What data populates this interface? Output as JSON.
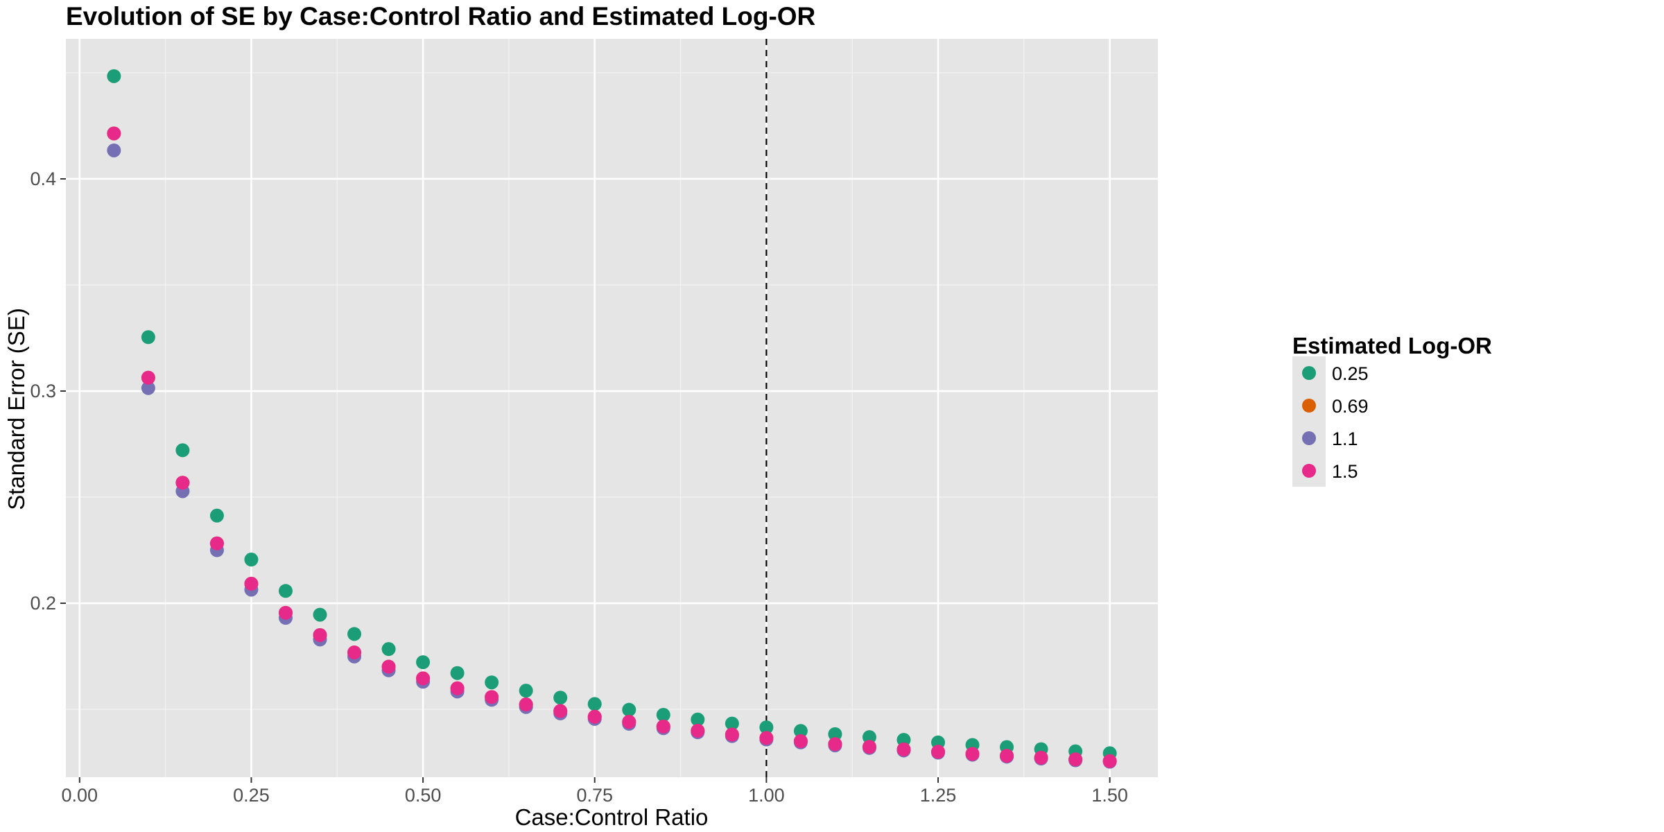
{
  "chart_data": {
    "type": "scatter",
    "title": "Evolution of SE by Case:Control Ratio and Estimated Log-OR",
    "xlabel": "Case:Control Ratio",
    "ylabel": "Standard Error (SE)",
    "xlim": [
      -0.02,
      1.57
    ],
    "ylim": [
      0.118,
      0.466
    ],
    "x_ticks": [
      0.0,
      0.25,
      0.5,
      0.75,
      1.0,
      1.25,
      1.5
    ],
    "x_tick_labels": [
      "0.00",
      "0.25",
      "0.50",
      "0.75",
      "1.00",
      "1.25",
      "1.50"
    ],
    "y_ticks": [
      0.2,
      0.3,
      0.4
    ],
    "y_tick_labels": [
      "0.2",
      "0.3",
      "0.4"
    ],
    "grid": true,
    "reference_line": {
      "axis": "x",
      "value": 1.0,
      "style": "dashed",
      "color": "#000000"
    },
    "legend": {
      "title": "Estimated Log-OR",
      "position": "right"
    },
    "x": [
      0.05,
      0.1,
      0.15,
      0.2,
      0.25,
      0.3,
      0.35,
      0.4,
      0.45,
      0.5,
      0.55,
      0.6,
      0.65,
      0.7,
      0.75,
      0.8,
      0.85,
      0.9,
      0.95,
      1.0,
      1.05,
      1.1,
      1.15,
      1.2,
      1.25,
      1.3,
      1.35,
      1.4,
      1.45,
      1.5
    ],
    "series": [
      {
        "name": "0.25",
        "color": "#1B9E77",
        "values": [
          0.4484,
          0.3254,
          0.2721,
          0.2413,
          0.2206,
          0.2058,
          0.1946,
          0.1855,
          0.1784,
          0.1722,
          0.1671,
          0.1627,
          0.1588,
          0.1555,
          0.1525,
          0.1498,
          0.1474,
          0.1452,
          0.1433,
          0.1415,
          0.1398,
          0.1383,
          0.1369,
          0.1356,
          0.1344,
          0.1332,
          0.1322,
          0.1312,
          0.1302,
          0.1293
        ]
      },
      {
        "name": "0.69",
        "color": "#D95F02",
        "values": [
          0.4214,
          0.3063,
          0.2568,
          0.2282,
          0.2092,
          0.1955,
          0.185,
          0.1768,
          0.1701,
          0.1646,
          0.1599,
          0.1558,
          0.1523,
          0.1492,
          0.1465,
          0.1441,
          0.1419,
          0.1399,
          0.1381,
          0.1365,
          0.135,
          0.1336,
          0.1323,
          0.1311,
          0.13,
          0.129,
          0.1281,
          0.1272,
          0.1264,
          0.1256
        ]
      },
      {
        "name": "1.1",
        "color": "#7570B3",
        "values": [
          0.4134,
          0.3014,
          0.2528,
          0.225,
          0.2064,
          0.1931,
          0.1829,
          0.1749,
          0.1684,
          0.163,
          0.1584,
          0.1545,
          0.1511,
          0.1481,
          0.1455,
          0.1432,
          0.1411,
          0.1392,
          0.1374,
          0.1358,
          0.1344,
          0.133,
          0.1318,
          0.1306,
          0.1296,
          0.1286,
          0.1277,
          0.1268,
          0.126,
          0.1253
        ]
      },
      {
        "name": "1.5",
        "color": "#E7298A",
        "values": [
          0.4214,
          0.3063,
          0.2568,
          0.2282,
          0.2092,
          0.1955,
          0.185,
          0.1768,
          0.1701,
          0.1646,
          0.1599,
          0.1558,
          0.1523,
          0.1492,
          0.1465,
          0.1441,
          0.1419,
          0.1399,
          0.1381,
          0.1365,
          0.135,
          0.1336,
          0.1323,
          0.1311,
          0.13,
          0.129,
          0.1281,
          0.1272,
          0.1264,
          0.1256
        ]
      }
    ]
  }
}
